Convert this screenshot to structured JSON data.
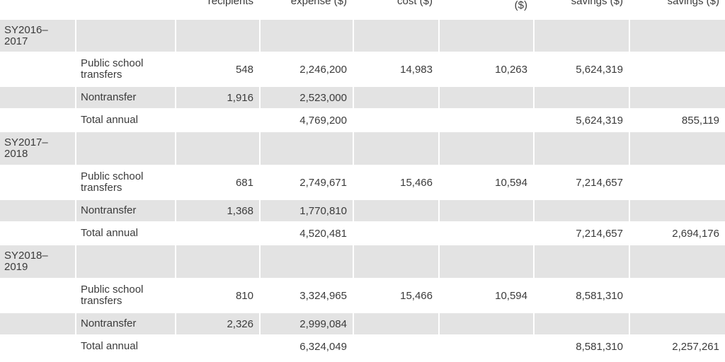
{
  "table": {
    "header": {
      "recipients": "recipients",
      "expense": "expense ($)",
      "cost": "cost ($)",
      "amount": "($)",
      "savings_a": "savings ($)",
      "savings_b": "savings ($)"
    },
    "rows": [
      {
        "type": "year",
        "year": "SY2016–2017"
      },
      {
        "type": "data",
        "category": "Public school transfers",
        "recipients": "548",
        "expense": "2,246,200",
        "cost": "14,983",
        "amount": "10,263",
        "savings": "5,624,319"
      },
      {
        "type": "data",
        "category": "Nontransfer",
        "recipients": "1,916",
        "expense": "2,523,000"
      },
      {
        "type": "total",
        "category": "Total annual",
        "expense": "4,769,200",
        "savings": "5,624,319",
        "savings2": "855,119"
      },
      {
        "type": "year",
        "year": "SY2017–2018"
      },
      {
        "type": "data",
        "category": "Public school transfers",
        "recipients": "681",
        "expense": "2,749,671",
        "cost": "15,466",
        "amount": "10,594",
        "savings": "7,214,657"
      },
      {
        "type": "data",
        "category": "Nontransfer",
        "recipients": "1,368",
        "expense": "1,770,810"
      },
      {
        "type": "total",
        "category": "Total annual",
        "expense": "4,520,481",
        "savings": "7,214,657",
        "savings2": "2,694,176"
      },
      {
        "type": "year",
        "year": "SY2018–2019"
      },
      {
        "type": "data",
        "category": "Public school transfers",
        "recipients": "810",
        "expense": "3,324,965",
        "cost": "15,466",
        "amount": "10,594",
        "savings": "8,581,310"
      },
      {
        "type": "data",
        "category": "Nontransfer",
        "recipients": "2,326",
        "expense": "2,999,084"
      },
      {
        "type": "total",
        "category": "Total annual",
        "expense": "6,324,049",
        "savings": "8,581,310",
        "savings2": "2,257,261"
      }
    ]
  }
}
